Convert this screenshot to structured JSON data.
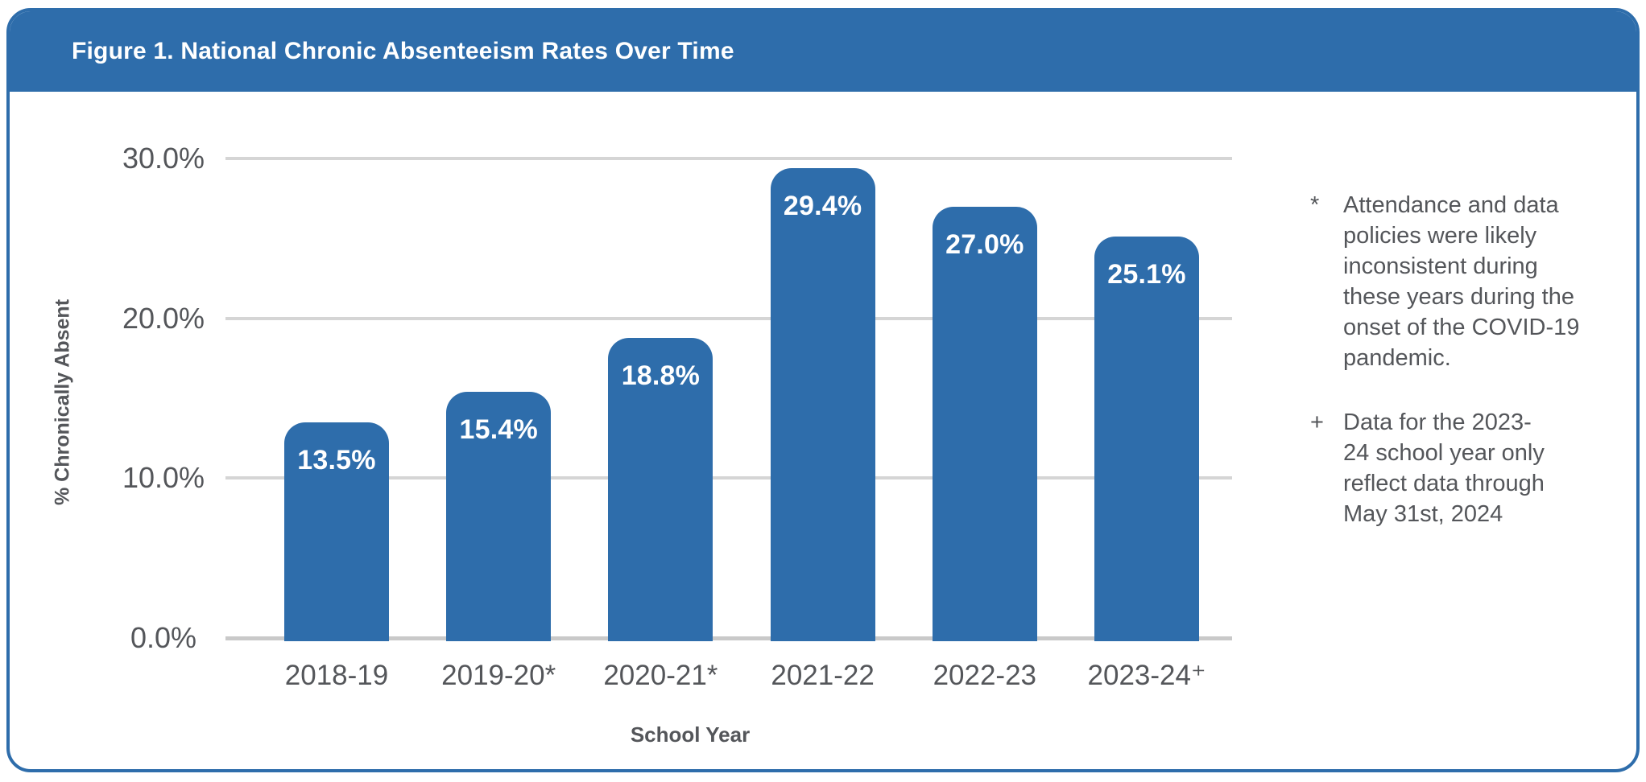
{
  "header": {
    "title": "Figure 1. National Chronic Absenteeism Rates Over Time"
  },
  "chart_data": {
    "type": "bar",
    "title": "Figure 1. National Chronic Absenteeism Rates Over Time",
    "categories": [
      "2018-19",
      "2019-20*",
      "2020-21*",
      "2021-22",
      "2022-23",
      "2023-24⁺"
    ],
    "values": [
      13.5,
      15.4,
      18.8,
      29.4,
      27.0,
      25.1
    ],
    "bar_value_labels": [
      "13.5%",
      "15.4%",
      "18.8%",
      "29.4%",
      "27.0%",
      "25.1%"
    ],
    "xlabel": "School Year",
    "ylabel": "% Chronically Absent",
    "ylim": [
      0,
      30
    ],
    "yticks": [
      0,
      10,
      20,
      30
    ],
    "ytick_labels": [
      "0.0%",
      "10.0%",
      "20.0%",
      "30.0%"
    ],
    "grid": true,
    "legend": "none",
    "bar_color": "#2E6DAB"
  },
  "notes": [
    {
      "marker": "*",
      "text": "Attendance and data\npolicies were likely\ninconsistent during\nthese years during the\nonset of the COVID-19\npandemic."
    },
    {
      "marker": "+",
      "text": "Data for the 2023-\n24 school year only\nreflect data through\nMay 31st, 2024"
    }
  ],
  "colors": {
    "accent_blue": "#2E6DAB",
    "grid_gray": "#D5D5D5",
    "baseline_gray": "#C9C9C9",
    "text_gray": "#54565A",
    "bar_label_white": "#FFFFFF"
  }
}
